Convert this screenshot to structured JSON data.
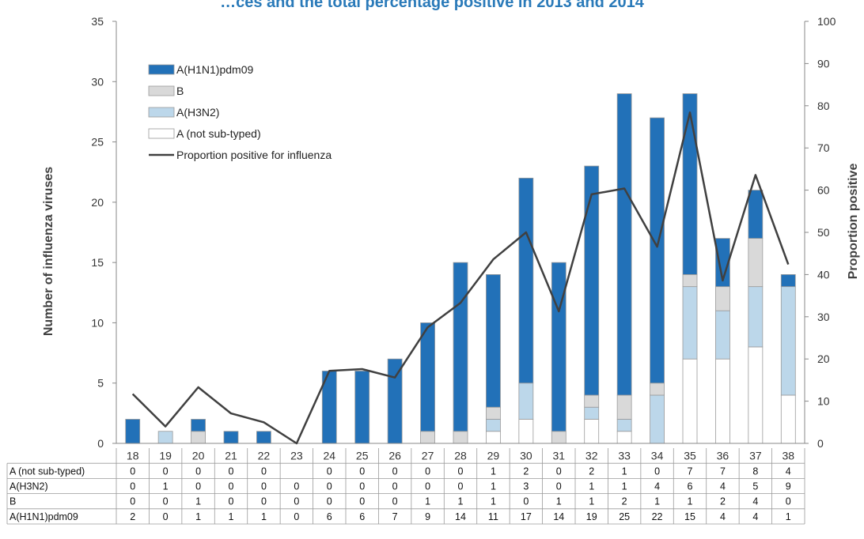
{
  "chart_data": {
    "type": "bar",
    "title": "…ces and the total percentage positive in 2013 and 2014",
    "ylabel": "Number of influenza viruses",
    "y2label": "Proportion positive",
    "ylim": [
      0,
      35
    ],
    "y2lim": [
      0,
      100
    ],
    "yticks": [
      "0",
      "5",
      "10",
      "15",
      "20",
      "25",
      "30",
      "35"
    ],
    "y2ticks": [
      "0",
      "10",
      "20",
      "30",
      "40",
      "50",
      "60",
      "70",
      "80",
      "90",
      "100"
    ],
    "categories": [
      "18",
      "19",
      "20",
      "21",
      "22",
      "23",
      "24",
      "25",
      "26",
      "27",
      "28",
      "29",
      "30",
      "31",
      "32",
      "33",
      "34",
      "35",
      "36",
      "37",
      "38"
    ],
    "stacked": true,
    "grid": false,
    "legend_position": "top-left",
    "series": [
      {
        "name": "A (not sub-typed)",
        "color": "#ffffff",
        "values": [
          0,
          0,
          0,
          0,
          0,
          null,
          0,
          0,
          0,
          0,
          0,
          1,
          2,
          0,
          2,
          1,
          0,
          7,
          7,
          8,
          4
        ]
      },
      {
        "name": "A(H3N2)",
        "color": "#bcd7ea",
        "values": [
          0,
          1,
          0,
          0,
          0,
          0,
          0,
          0,
          0,
          0,
          0,
          1,
          3,
          0,
          1,
          1,
          4,
          6,
          4,
          5,
          9
        ]
      },
      {
        "name": "B",
        "color": "#d9d9d9",
        "values": [
          0,
          0,
          1,
          0,
          0,
          0,
          0,
          0,
          0,
          1,
          1,
          1,
          0,
          1,
          1,
          2,
          1,
          1,
          2,
          4,
          0
        ]
      },
      {
        "name": "A(H1N1)pdm09",
        "color": "#2271b8",
        "values": [
          2,
          0,
          1,
          1,
          1,
          0,
          6,
          6,
          7,
          9,
          14,
          11,
          17,
          14,
          19,
          25,
          22,
          15,
          4,
          4,
          1
        ]
      }
    ],
    "line_series": {
      "name": "Proportion positive for influenza",
      "color": "#404040",
      "axis": "right",
      "values": [
        11.7,
        4,
        13.3,
        7.1,
        5,
        0,
        17.2,
        17.6,
        15.6,
        27.5,
        33.3,
        43.6,
        50,
        31.3,
        59,
        60.4,
        46.6,
        78.4,
        38.6,
        63.6,
        42.4
      ]
    },
    "legend_order": [
      "A(H1N1)pdm09",
      "B",
      "A(H3N2)",
      "A (not sub-typed)",
      "Proportion positive for influenza"
    ],
    "table_rows_order": [
      "A (not sub-typed)",
      "A(H3N2)",
      "B",
      "A(H1N1)pdm09"
    ]
  }
}
